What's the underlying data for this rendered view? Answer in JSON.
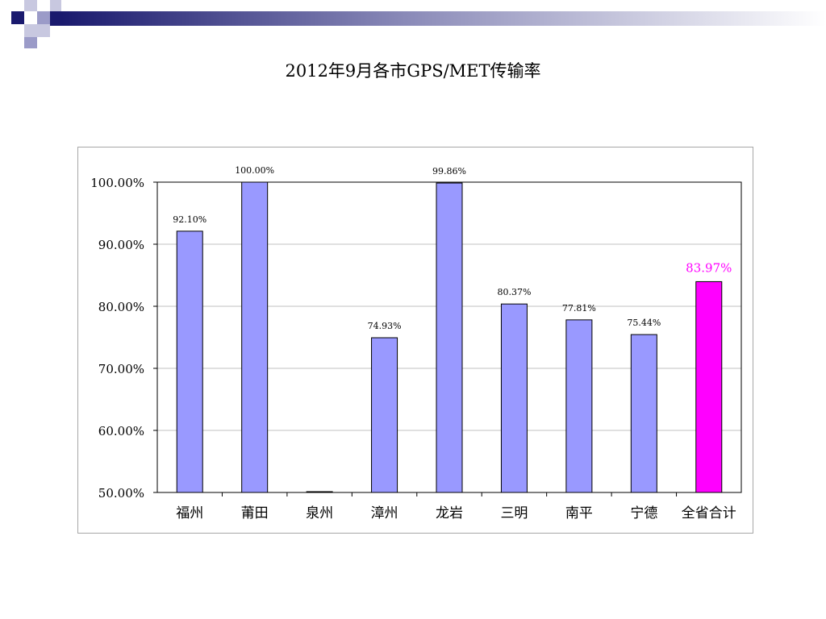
{
  "slide": {
    "title": "2012年9月各市GPS/MET传输率"
  },
  "colors": {
    "bar": "#9999ff",
    "highlight_bar": "#ff00ff",
    "highlight_label": "#ff00ff",
    "gridline": "#c0c0c0",
    "band_dark": "#1a1a6e"
  },
  "chart_data": {
    "type": "bar",
    "title": "2012年9月各市GPS/MET传输率",
    "categories": [
      "福州",
      "莆田",
      "泉州",
      "漳州",
      "龙岩",
      "三明",
      "南平",
      "宁德",
      "全省合计"
    ],
    "values": [
      92.1,
      100.0,
      50.0,
      74.93,
      99.86,
      80.37,
      77.81,
      75.44,
      83.97
    ],
    "data_labels": [
      "92.10%",
      "100.00%",
      "",
      "74.93%",
      "99.86%",
      "80.37%",
      "77.81%",
      "75.44%",
      "83.97%"
    ],
    "highlight_index": 8,
    "ylim": [
      50,
      100
    ],
    "yticks": [
      50,
      60,
      70,
      80,
      90,
      100
    ],
    "ytick_labels": [
      "50.00%",
      "60.00%",
      "70.00%",
      "80.00%",
      "90.00%",
      "100.00%"
    ],
    "grid": true,
    "xlabel": "",
    "ylabel": ""
  }
}
